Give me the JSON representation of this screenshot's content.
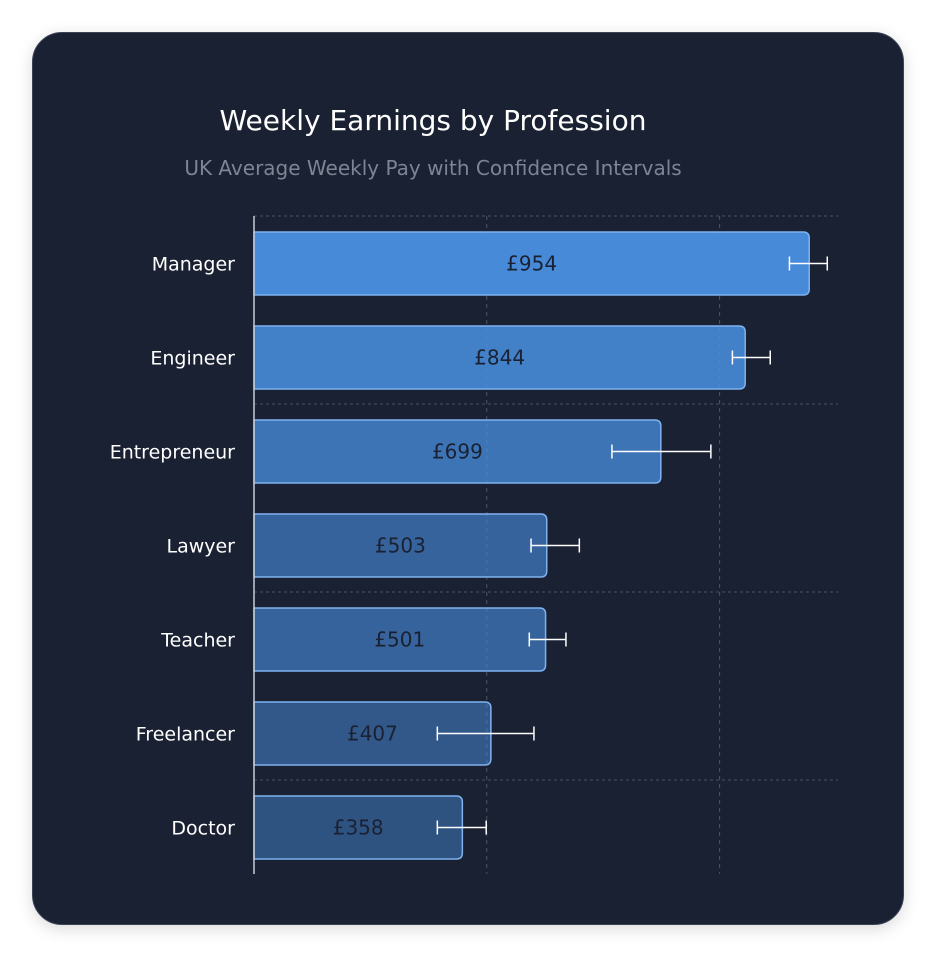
{
  "chart_data": {
    "type": "bar",
    "orientation": "horizontal",
    "title": "Weekly Earnings by Profession",
    "subtitle": "UK Average Weekly Pay with Confidence Intervals",
    "categories": [
      "Manager",
      "Engineer",
      "Entrepreneur",
      "Lawyer",
      "Teacher",
      "Freelancer",
      "Doctor"
    ],
    "values": [
      954,
      844,
      699,
      503,
      501,
      407,
      358
    ],
    "labels": [
      "£954",
      "£844",
      "£699",
      "£503",
      "£501",
      "£407",
      "£358"
    ],
    "ci_low": [
      920,
      822,
      615,
      476,
      473,
      315,
      315
    ],
    "ci_high": [
      985,
      887,
      785,
      559,
      536,
      481,
      399
    ],
    "xlim": [
      0,
      1000
    ],
    "x_gridlines": [
      400,
      800
    ],
    "grid": true,
    "bar_color": "#4a90e2",
    "bar_border_color": "#7fb3f0",
    "background": "#1a2132"
  }
}
